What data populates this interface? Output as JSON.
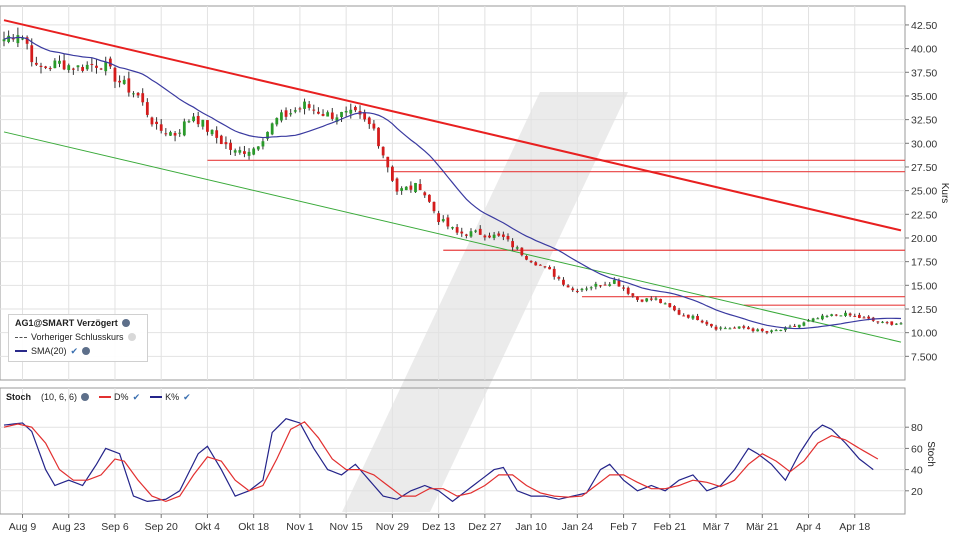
{
  "symbol_label": "AG1@SMART Verzögert",
  "legend": {
    "prev_close_label": "Vorheriger Schlusskurs",
    "sma_label": "SMA(20)"
  },
  "price_axis": {
    "title": "Kurs",
    "min": 5,
    "max": 44.5,
    "ticks": [
      7.5,
      10,
      12.5,
      15,
      17.5,
      20,
      22.5,
      25,
      27.5,
      30,
      32.5,
      35,
      37.5,
      40,
      42.5
    ],
    "tick_labels": [
      "7.500",
      "10.00",
      "12.50",
      "15.00",
      "17.50",
      "20.00",
      "22.50",
      "25.00",
      "27.50",
      "30.00",
      "32.50",
      "35.00",
      "37.50",
      "40.00",
      "42.50"
    ]
  },
  "stoch": {
    "title": "Stoch",
    "params": "(10, 6, 6)",
    "d_label": "D%",
    "k_label": "K%",
    "axis_title": "Stoch",
    "ticks": [
      20,
      40,
      60,
      80
    ],
    "min": 0,
    "max": 100
  },
  "x_axis": {
    "labels": [
      "Aug 9",
      "Aug 23",
      "Sep 6",
      "Sep 20",
      "Okt 4",
      "Okt 18",
      "Nov 1",
      "Nov 15",
      "Nov 29",
      "Dez 13",
      "Dez 27",
      "Jan 10",
      "Jan 24",
      "Feb 7",
      "Feb 21",
      "Mär 7",
      "Mär 21",
      "Apr 4",
      "Apr 18"
    ],
    "label_index": [
      4,
      14,
      24,
      34,
      44,
      54,
      64,
      74,
      84,
      94,
      104,
      114,
      124,
      134,
      144,
      154,
      164,
      174,
      184
    ],
    "total_bars": 195
  },
  "colors": {
    "up": "#2a9a2a",
    "down": "#d41c1c",
    "sma": "#3a3aa0",
    "d_line": "#e23030",
    "k_line": "#24248a",
    "trend_red": "#e82020",
    "trend_green": "#3aaa3a",
    "resist": "#e84040"
  },
  "chart_data": [
    {
      "type": "candlestick",
      "title": "AG1@SMART Verzögert",
      "ylabel": "Kurs",
      "ylim": [
        5,
        44.5
      ],
      "close_anchors": [
        [
          0,
          41.0
        ],
        [
          3,
          41.8
        ],
        [
          5,
          40.5
        ],
        [
          7,
          37.8
        ],
        [
          12,
          38.5
        ],
        [
          16,
          38.0
        ],
        [
          21,
          38.5
        ],
        [
          25,
          36.5
        ],
        [
          29,
          35.0
        ],
        [
          33,
          31.5
        ],
        [
          37,
          31.0
        ],
        [
          41,
          33.0
        ],
        [
          45,
          31.0
        ],
        [
          50,
          29.0
        ],
        [
          54,
          29.5
        ],
        [
          59,
          32.5
        ],
        [
          65,
          34.0
        ],
        [
          70,
          33.0
        ],
        [
          76,
          33.0
        ],
        [
          80,
          31.5
        ],
        [
          85,
          25.0
        ],
        [
          90,
          25.5
        ],
        [
          94,
          22.0
        ],
        [
          98,
          20.5
        ],
        [
          103,
          20.5
        ],
        [
          108,
          20.0
        ],
        [
          113,
          18.0
        ],
        [
          118,
          16.5
        ],
        [
          123,
          14.5
        ],
        [
          128,
          15.0
        ],
        [
          132,
          15.5
        ],
        [
          137,
          13.5
        ],
        [
          141,
          13.5
        ],
        [
          146,
          12.0
        ],
        [
          150,
          11.5
        ],
        [
          154,
          10.5
        ],
        [
          160,
          10.5
        ],
        [
          165,
          10.0
        ],
        [
          170,
          10.5
        ],
        [
          176,
          11.5
        ],
        [
          181,
          12.0
        ],
        [
          186,
          11.5
        ],
        [
          190,
          11.0
        ]
      ],
      "sma_period": 20,
      "trendlines": [
        {
          "name": "Red downtrend",
          "color": "red",
          "start": [
            0,
            43.0
          ],
          "end": [
            194,
            20.8
          ]
        },
        {
          "name": "Green downtrend",
          "color": "green",
          "start": [
            0,
            31.2
          ],
          "end": [
            194,
            9.0
          ]
        }
      ],
      "horizontal_levels": [
        {
          "value": 28.2,
          "from_bar": 44
        },
        {
          "value": 27.0,
          "from_bar": 84
        },
        {
          "value": 18.7,
          "from_bar": 95
        },
        {
          "value": 13.8,
          "from_bar": 125
        },
        {
          "value": 12.9,
          "from_bar": 160
        }
      ]
    },
    {
      "type": "line",
      "title": "Stoch (10, 6, 6)",
      "ylim": [
        0,
        100
      ],
      "series": [
        {
          "name": "K%",
          "anchors": [
            [
              0,
              82
            ],
            [
              4,
              84
            ],
            [
              6,
              76
            ],
            [
              9,
              40
            ],
            [
              11,
              25
            ],
            [
              14,
              30
            ],
            [
              17,
              25
            ],
            [
              20,
              45
            ],
            [
              22,
              60
            ],
            [
              25,
              55
            ],
            [
              28,
              15
            ],
            [
              31,
              10
            ],
            [
              35,
              12
            ],
            [
              38,
              20
            ],
            [
              42,
              55
            ],
            [
              44,
              62
            ],
            [
              47,
              40
            ],
            [
              50,
              15
            ],
            [
              53,
              20
            ],
            [
              56,
              30
            ],
            [
              58,
              75
            ],
            [
              61,
              88
            ],
            [
              64,
              84
            ],
            [
              67,
              60
            ],
            [
              70,
              40
            ],
            [
              73,
              35
            ],
            [
              76,
              45
            ],
            [
              79,
              30
            ],
            [
              82,
              15
            ],
            [
              85,
              12
            ],
            [
              88,
              20
            ],
            [
              91,
              25
            ],
            [
              94,
              20
            ],
            [
              97,
              10
            ],
            [
              100,
              20
            ],
            [
              103,
              30
            ],
            [
              106,
              40
            ],
            [
              108,
              42
            ],
            [
              111,
              20
            ],
            [
              114,
              15
            ],
            [
              117,
              15
            ],
            [
              120,
              12
            ],
            [
              123,
              15
            ],
            [
              126,
              18
            ],
            [
              129,
              40
            ],
            [
              131,
              45
            ],
            [
              134,
              30
            ],
            [
              137,
              20
            ],
            [
              140,
              25
            ],
            [
              143,
              20
            ],
            [
              146,
              30
            ],
            [
              149,
              35
            ],
            [
              152,
              20
            ],
            [
              155,
              25
            ],
            [
              158,
              40
            ],
            [
              161,
              60
            ],
            [
              163,
              55
            ],
            [
              166,
              45
            ],
            [
              169,
              30
            ],
            [
              172,
              55
            ],
            [
              175,
              75
            ],
            [
              177,
              82
            ],
            [
              179,
              78
            ],
            [
              182,
              65
            ],
            [
              185,
              50
            ],
            [
              188,
              40
            ]
          ]
        },
        {
          "name": "D%",
          "anchors": [
            [
              0,
              80
            ],
            [
              3,
              83
            ],
            [
              6,
              80
            ],
            [
              9,
              65
            ],
            [
              12,
              40
            ],
            [
              15,
              30
            ],
            [
              18,
              30
            ],
            [
              21,
              35
            ],
            [
              24,
              50
            ],
            [
              26,
              48
            ],
            [
              29,
              30
            ],
            [
              32,
              15
            ],
            [
              35,
              10
            ],
            [
              38,
              15
            ],
            [
              41,
              35
            ],
            [
              44,
              52
            ],
            [
              47,
              48
            ],
            [
              50,
              30
            ],
            [
              53,
              20
            ],
            [
              56,
              25
            ],
            [
              59,
              50
            ],
            [
              62,
              78
            ],
            [
              65,
              85
            ],
            [
              68,
              70
            ],
            [
              71,
              50
            ],
            [
              74,
              40
            ],
            [
              77,
              40
            ],
            [
              80,
              35
            ],
            [
              83,
              25
            ],
            [
              86,
              15
            ],
            [
              89,
              15
            ],
            [
              92,
              22
            ],
            [
              95,
              22
            ],
            [
              98,
              15
            ],
            [
              101,
              18
            ],
            [
              104,
              25
            ],
            [
              107,
              35
            ],
            [
              110,
              35
            ],
            [
              113,
              25
            ],
            [
              116,
              18
            ],
            [
              119,
              15
            ],
            [
              122,
              14
            ],
            [
              125,
              15
            ],
            [
              128,
              25
            ],
            [
              131,
              35
            ],
            [
              134,
              35
            ],
            [
              137,
              28
            ],
            [
              140,
              22
            ],
            [
              143,
              22
            ],
            [
              146,
              25
            ],
            [
              149,
              30
            ],
            [
              152,
              28
            ],
            [
              155,
              24
            ],
            [
              158,
              30
            ],
            [
              161,
              45
            ],
            [
              164,
              55
            ],
            [
              167,
              48
            ],
            [
              170,
              38
            ],
            [
              173,
              48
            ],
            [
              176,
              65
            ],
            [
              179,
              72
            ],
            [
              182,
              68
            ],
            [
              185,
              60
            ],
            [
              189,
              50
            ]
          ]
        }
      ],
      "yticks": [
        20,
        40,
        60,
        80
      ]
    }
  ]
}
